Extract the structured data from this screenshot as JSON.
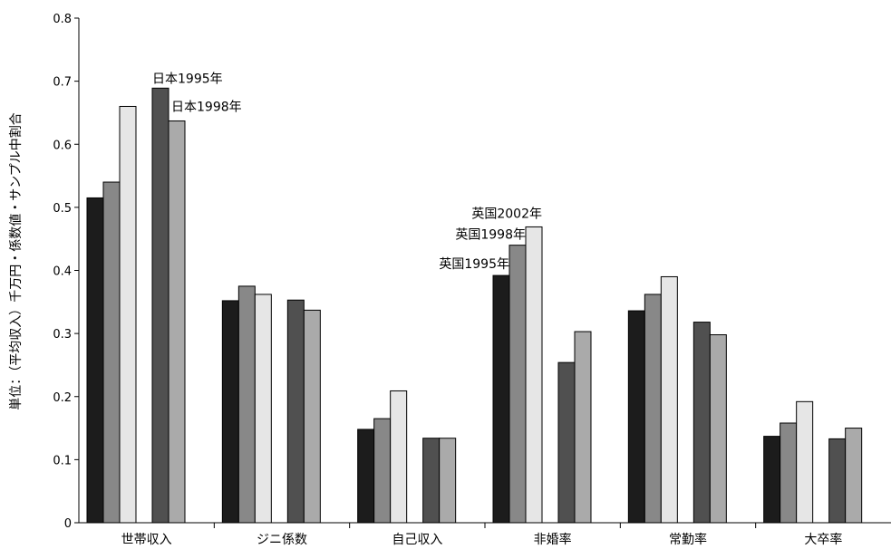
{
  "chart_data": {
    "type": "bar",
    "ylabel": "単位：（平均収入）千万円・係数値・サンプル中割合",
    "xlabel": "",
    "ylim": [
      0,
      0.8
    ],
    "yticks": [
      "0",
      "0.1",
      "0.2",
      "0.3",
      "0.4",
      "0.5",
      "0.6",
      "0.7",
      "0.8"
    ],
    "categories": [
      "世帯収入",
      "ジニ係数",
      "自己収入",
      "非婚率",
      "常勤率",
      "大卒率"
    ],
    "grid": false,
    "legend": "none",
    "series": [
      {
        "name": "英国1995年",
        "color": "#1c1c1c",
        "values": [
          0.515,
          0.352,
          0.148,
          0.392,
          0.336,
          0.137
        ]
      },
      {
        "name": "英国1998年",
        "color": "#888888",
        "values": [
          0.54,
          0.375,
          0.165,
          0.44,
          0.362,
          0.158
        ]
      },
      {
        "name": "英国2002年",
        "color": "#e6e6e6",
        "values": [
          0.66,
          0.362,
          0.209,
          0.469,
          0.39,
          0.192
        ]
      },
      {
        "name": "日本1995年",
        "color": "#505050",
        "values": [
          0.689,
          0.353,
          0.134,
          0.254,
          0.318,
          0.133
        ]
      },
      {
        "name": "日本1998年",
        "color": "#aaaaaa",
        "values": [
          0.637,
          0.337,
          0.134,
          0.303,
          0.298,
          0.15
        ]
      }
    ],
    "annotations": [
      {
        "text": "日本1995年",
        "series": 3,
        "category": 0
      },
      {
        "text": "日本1998年",
        "series": 4,
        "category": 0
      },
      {
        "text": "英国2002年",
        "series": 2,
        "category": 3
      },
      {
        "text": "英国1998年",
        "series": 1,
        "category": 3
      },
      {
        "text": "英国1995年",
        "series": 0,
        "category": 3
      }
    ]
  }
}
